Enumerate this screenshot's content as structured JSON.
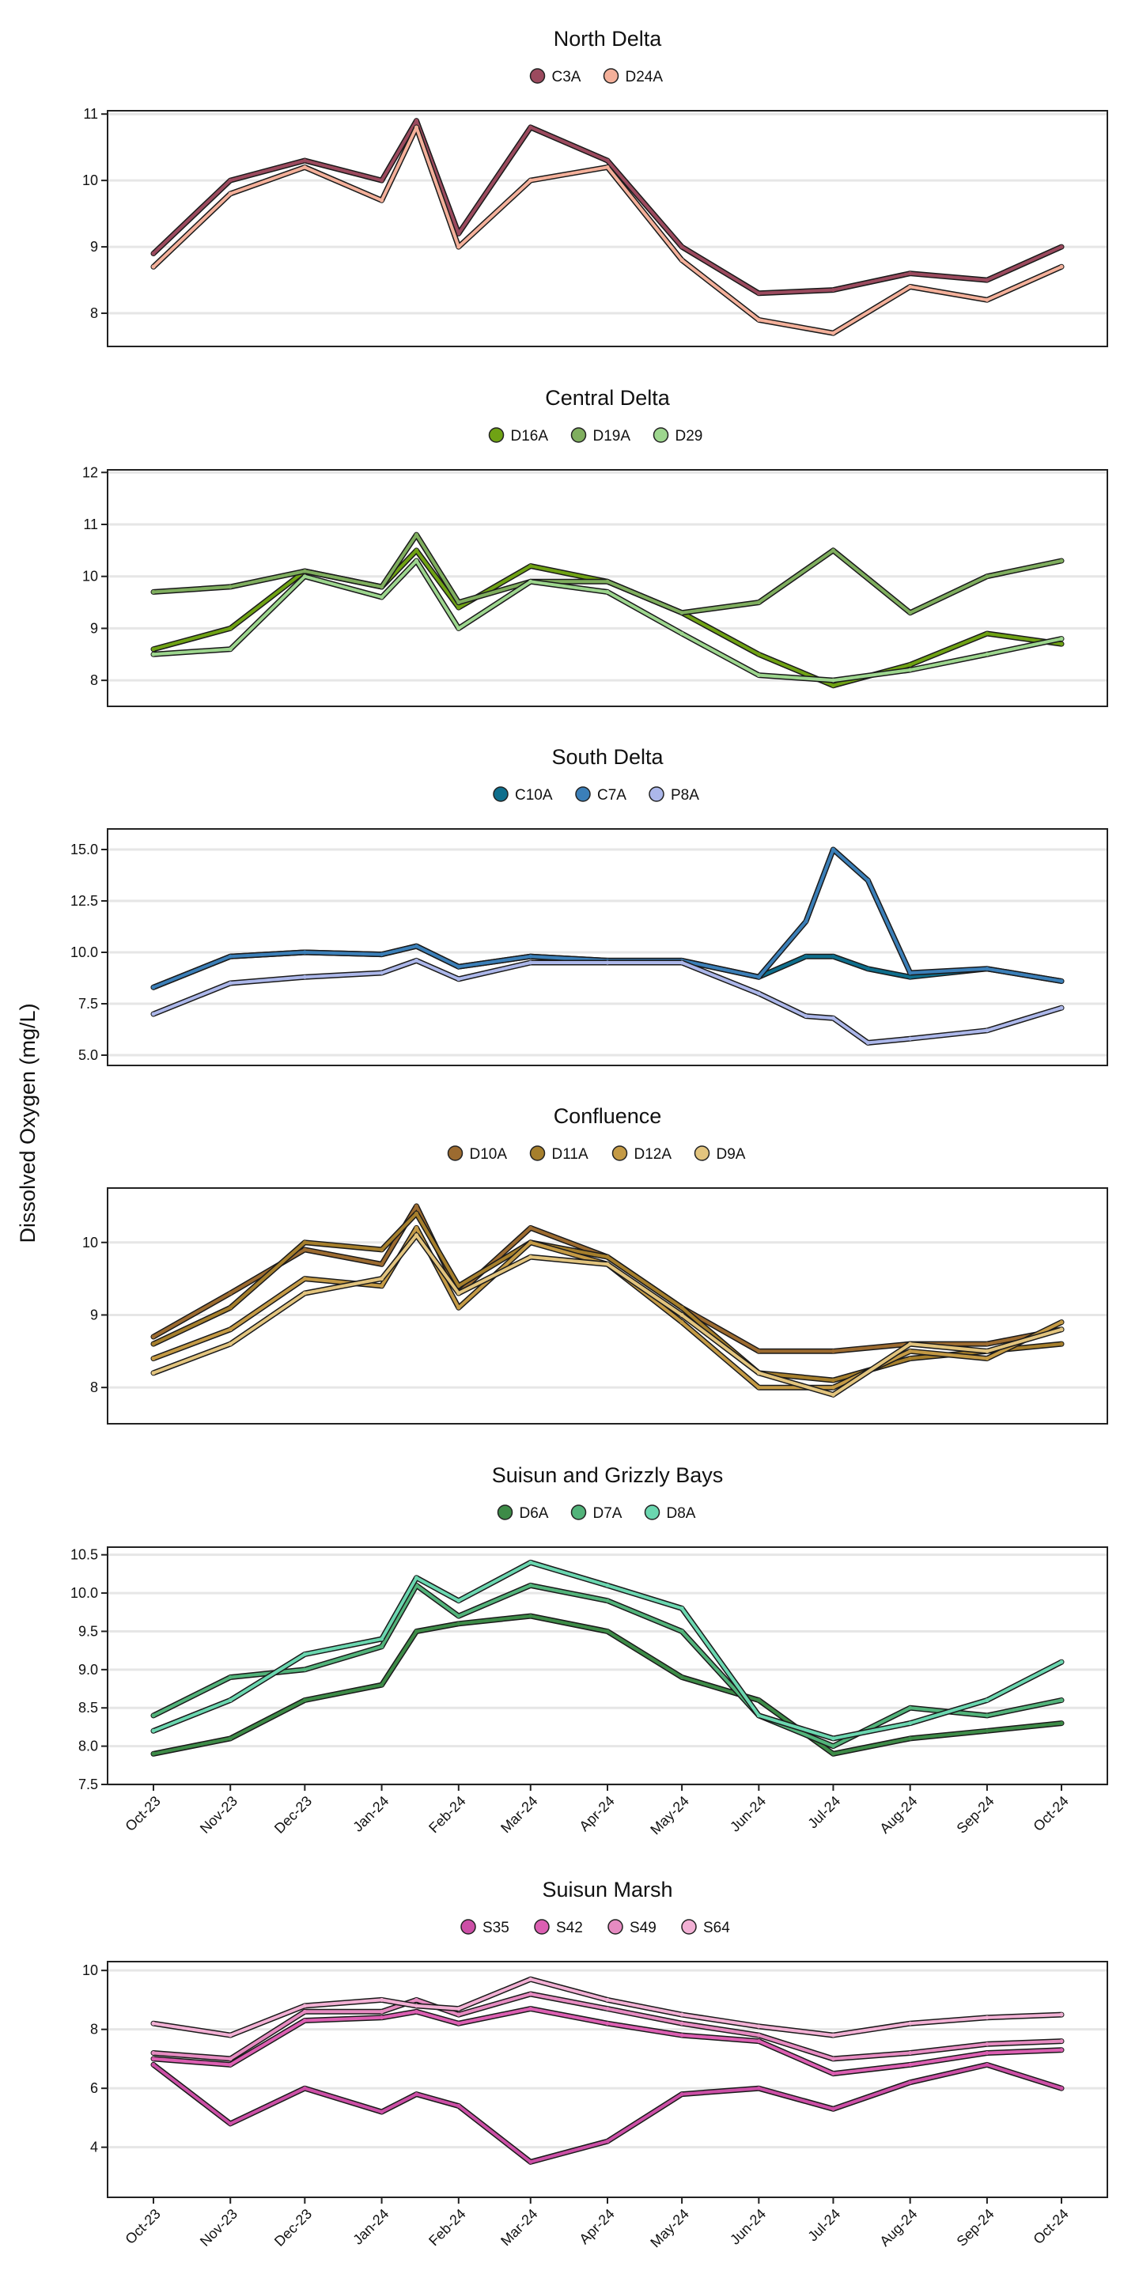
{
  "figure": {
    "ylabel": "Dissolved Oxygen (mg/L)"
  },
  "x_axis": {
    "tick_labels": [
      "Oct-23",
      "Nov-23",
      "Dec-23",
      "Jan-24",
      "Feb-24",
      "Mar-24",
      "Apr-24",
      "May-24",
      "Jun-24",
      "Jul-24",
      "Aug-24",
      "Sep-24",
      "Oct-24"
    ],
    "range": [
      "2023-10-01",
      "2024-10-01"
    ]
  },
  "chart_data": [
    {
      "type": "line",
      "title": "North Delta",
      "ylim": [
        7.5,
        11.05
      ],
      "yticks": [
        8,
        9,
        10,
        11
      ],
      "tick_labels": [
        "8",
        "9",
        "10",
        "11"
      ],
      "grid": "horizontal",
      "legend": "top-center",
      "x": [
        "2023-10-01",
        "2023-11-01",
        "2023-12-01",
        "2024-01-01",
        "2024-01-15",
        "2024-02-01",
        "2024-03-01",
        "2024-04-01",
        "2024-05-01",
        "2024-06-01",
        "2024-07-01",
        "2024-08-01",
        "2024-09-01",
        "2024-10-01"
      ],
      "series": [
        {
          "name": "C3A",
          "color": "#9B4A5E",
          "values": [
            8.9,
            10.0,
            10.3,
            10.0,
            10.9,
            9.2,
            10.8,
            10.3,
            9.0,
            8.3,
            8.35,
            8.6,
            8.5,
            9.0
          ]
        },
        {
          "name": "D24A",
          "color": "#F4B09A",
          "values": [
            8.7,
            9.8,
            10.2,
            9.7,
            10.8,
            9.0,
            10.0,
            10.2,
            8.8,
            7.9,
            7.7,
            8.4,
            8.2,
            8.7
          ]
        }
      ]
    },
    {
      "type": "line",
      "title": "Central Delta",
      "ylim": [
        7.5,
        12.05
      ],
      "yticks": [
        8,
        9,
        10,
        11,
        12
      ],
      "tick_labels": [
        "8",
        "9",
        "10",
        "11",
        "12"
      ],
      "grid": "horizontal",
      "legend": "top-center",
      "x": [
        "2023-10-01",
        "2023-11-01",
        "2023-12-01",
        "2024-01-01",
        "2024-01-15",
        "2024-02-01",
        "2024-03-01",
        "2024-04-01",
        "2024-05-01",
        "2024-06-01",
        "2024-07-01",
        "2024-08-01",
        "2024-09-01",
        "2024-10-01"
      ],
      "series": [
        {
          "name": "D16A",
          "color": "#6FA214",
          "values": [
            8.6,
            9.0,
            10.1,
            9.8,
            10.5,
            9.4,
            10.2,
            9.9,
            9.3,
            8.5,
            7.9,
            8.3,
            8.9,
            8.7
          ]
        },
        {
          "name": "D19A",
          "color": "#7FAE5E",
          "values": [
            9.7,
            9.8,
            10.1,
            9.8,
            10.8,
            9.5,
            9.9,
            9.9,
            9.3,
            9.5,
            10.5,
            9.3,
            10.0,
            10.3
          ]
        },
        {
          "name": "D29",
          "color": "#9DD68E",
          "values": [
            8.5,
            8.6,
            10.0,
            9.6,
            10.3,
            9.0,
            9.9,
            9.7,
            8.9,
            8.1,
            8.0,
            8.2,
            8.5,
            8.8
          ]
        }
      ]
    },
    {
      "type": "line",
      "title": "South Delta",
      "ylim": [
        4.5,
        16.0
      ],
      "yticks": [
        5.0,
        7.5,
        10.0,
        12.5,
        15.0
      ],
      "tick_labels": [
        "5.0",
        "7.5",
        "10.0",
        "12.5",
        "15.0"
      ],
      "grid": "horizontal",
      "legend": "top-center",
      "x": [
        "2023-10-01",
        "2023-11-01",
        "2023-12-01",
        "2024-01-01",
        "2024-01-15",
        "2024-02-01",
        "2024-03-01",
        "2024-04-01",
        "2024-05-01",
        "2024-06-01",
        "2024-06-20",
        "2024-07-01",
        "2024-07-15",
        "2024-08-01",
        "2024-09-01",
        "2024-10-01"
      ],
      "series": [
        {
          "name": "C10A",
          "color": "#0E6E8C",
          "values": [
            8.3,
            9.8,
            10.0,
            9.9,
            10.3,
            9.3,
            9.8,
            9.6,
            9.6,
            8.8,
            9.8,
            9.8,
            9.2,
            8.8,
            9.2,
            8.6
          ]
        },
        {
          "name": "C7A",
          "color": "#3B7FB8",
          "values": [
            8.3,
            9.8,
            10.0,
            9.9,
            10.3,
            9.3,
            9.8,
            9.6,
            9.6,
            8.8,
            11.5,
            15.0,
            13.5,
            9.0,
            9.2,
            8.6
          ]
        },
        {
          "name": "P8A",
          "color": "#ACB7EA",
          "values": [
            7.0,
            8.5,
            8.8,
            9.0,
            9.6,
            8.7,
            9.5,
            9.5,
            9.5,
            8.0,
            6.9,
            6.8,
            5.6,
            5.8,
            6.2,
            7.3
          ]
        }
      ]
    },
    {
      "type": "line",
      "title": "Confluence",
      "ylim": [
        7.5,
        10.75
      ],
      "yticks": [
        8,
        9,
        10
      ],
      "tick_labels": [
        "8",
        "9",
        "10"
      ],
      "grid": "horizontal",
      "legend": "top-center",
      "x": [
        "2023-10-01",
        "2023-11-01",
        "2023-12-01",
        "2024-01-01",
        "2024-01-15",
        "2024-02-01",
        "2024-03-01",
        "2024-04-01",
        "2024-05-01",
        "2024-06-01",
        "2024-07-01",
        "2024-08-01",
        "2024-09-01",
        "2024-10-01"
      ],
      "series": [
        {
          "name": "D10A",
          "color": "#9C6B30",
          "values": [
            8.7,
            9.3,
            9.9,
            9.7,
            10.5,
            9.3,
            10.2,
            9.8,
            9.1,
            8.5,
            8.5,
            8.6,
            8.6,
            8.8
          ]
        },
        {
          "name": "D11A",
          "color": "#A67F2C",
          "values": [
            8.6,
            9.1,
            10.0,
            9.9,
            10.4,
            9.4,
            10.0,
            9.8,
            9.1,
            8.2,
            8.1,
            8.4,
            8.5,
            8.6
          ]
        },
        {
          "name": "D12A",
          "color": "#C49A45",
          "values": [
            8.4,
            8.8,
            9.5,
            9.4,
            10.2,
            9.1,
            10.0,
            9.7,
            8.9,
            8.0,
            8.0,
            8.5,
            8.4,
            8.9
          ]
        },
        {
          "name": "D9A",
          "color": "#E2C47E",
          "values": [
            8.2,
            8.6,
            9.3,
            9.5,
            10.1,
            9.3,
            9.8,
            9.7,
            9.0,
            8.2,
            7.9,
            8.6,
            8.5,
            8.8
          ]
        }
      ]
    },
    {
      "type": "line",
      "title": "Suisun and Grizzly Bays",
      "ylim": [
        7.5,
        10.6
      ],
      "yticks": [
        7.5,
        8.0,
        8.5,
        9.0,
        9.5,
        10.0,
        10.5
      ],
      "tick_labels": [
        "7.5",
        "8.0",
        "8.5",
        "9.0",
        "9.5",
        "10.0",
        "10.5"
      ],
      "grid": "horizontal",
      "legend": "top-center",
      "x": [
        "2023-10-01",
        "2023-11-01",
        "2023-12-01",
        "2024-01-01",
        "2024-01-15",
        "2024-02-01",
        "2024-03-01",
        "2024-04-01",
        "2024-05-01",
        "2024-06-01",
        "2024-07-01",
        "2024-08-01",
        "2024-09-01",
        "2024-10-01"
      ],
      "series": [
        {
          "name": "D6A",
          "color": "#3D8B47",
          "values": [
            7.9,
            8.1,
            8.6,
            8.8,
            9.5,
            9.6,
            9.7,
            9.5,
            8.9,
            8.6,
            7.9,
            8.1,
            8.2,
            8.3
          ]
        },
        {
          "name": "D7A",
          "color": "#52B37A",
          "values": [
            8.4,
            8.9,
            9.0,
            9.3,
            10.1,
            9.7,
            10.1,
            9.9,
            9.5,
            8.4,
            8.0,
            8.5,
            8.4,
            8.6
          ]
        },
        {
          "name": "D8A",
          "color": "#6BD7B0",
          "values": [
            8.2,
            8.6,
            9.2,
            9.4,
            10.2,
            9.9,
            10.4,
            10.1,
            9.8,
            8.4,
            8.1,
            8.3,
            8.6,
            9.1
          ]
        }
      ]
    },
    {
      "type": "line",
      "title": "Suisun Marsh",
      "ylim": [
        2.3,
        10.3
      ],
      "yticks": [
        4,
        6,
        8,
        10
      ],
      "tick_labels": [
        "4",
        "6",
        "8",
        "10"
      ],
      "grid": "horizontal",
      "legend": "top-center",
      "x": [
        "2023-10-01",
        "2023-11-01",
        "2023-12-01",
        "2024-01-01",
        "2024-01-15",
        "2024-02-01",
        "2024-03-01",
        "2024-04-01",
        "2024-05-01",
        "2024-06-01",
        "2024-07-01",
        "2024-08-01",
        "2024-09-01",
        "2024-10-01"
      ],
      "series": [
        {
          "name": "S35",
          "color": "#CC4FA6",
          "values": [
            6.8,
            4.8,
            6.0,
            5.2,
            5.8,
            5.4,
            3.5,
            4.2,
            5.8,
            6.0,
            5.3,
            6.2,
            6.8,
            6.0
          ]
        },
        {
          "name": "S42",
          "color": "#DC5FB2",
          "values": [
            7.0,
            6.8,
            8.3,
            8.4,
            8.6,
            8.2,
            8.7,
            8.2,
            7.8,
            7.6,
            6.5,
            6.8,
            7.2,
            7.3
          ]
        },
        {
          "name": "S49",
          "color": "#E68BC1",
          "values": [
            7.2,
            7.0,
            8.6,
            8.6,
            9.0,
            8.5,
            9.2,
            8.7,
            8.2,
            7.8,
            7.0,
            7.2,
            7.5,
            7.6
          ]
        },
        {
          "name": "S64",
          "color": "#F2B0D4",
          "values": [
            8.2,
            7.8,
            8.8,
            9.0,
            8.8,
            8.7,
            9.7,
            9.0,
            8.5,
            8.1,
            7.8,
            8.2,
            8.4,
            8.5
          ]
        }
      ]
    }
  ]
}
